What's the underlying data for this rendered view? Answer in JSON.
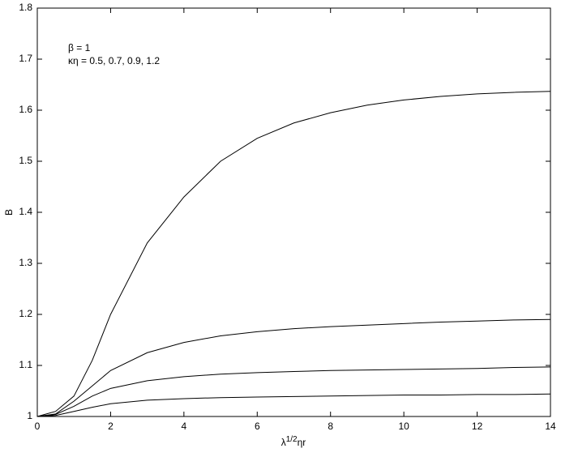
{
  "chart_data": {
    "type": "line",
    "annotations": [
      "β = 1",
      "κη = 0.5, 0.7, 0.9, 1.2"
    ],
    "xlabel": [
      "λ",
      "1/2",
      "ηr"
    ],
    "ylabel": "B",
    "x": [
      0,
      0.5,
      1,
      1.5,
      2,
      3,
      4,
      5,
      6,
      7,
      8,
      9,
      10,
      11,
      12,
      13,
      14
    ],
    "series": [
      {
        "color": "#000000",
        "values": [
          1,
          1.01,
          1.04,
          1.11,
          1.2,
          1.34,
          1.43,
          1.5,
          1.545,
          1.575,
          1.595,
          1.61,
          1.62,
          1.627,
          1.632,
          1.635,
          1.637
        ]
      },
      {
        "color": "#000000",
        "values": [
          1,
          1.005,
          1.03,
          1.06,
          1.09,
          1.125,
          1.145,
          1.158,
          1.166,
          1.172,
          1.176,
          1.179,
          1.182,
          1.185,
          1.187,
          1.189,
          1.19
        ]
      },
      {
        "color": "#000000",
        "values": [
          1,
          1.004,
          1.02,
          1.04,
          1.055,
          1.07,
          1.078,
          1.083,
          1.086,
          1.088,
          1.09,
          1.091,
          1.092,
          1.093,
          1.094,
          1.096,
          1.097
        ]
      },
      {
        "color": "#000000",
        "values": [
          1,
          1.002,
          1.01,
          1.018,
          1.025,
          1.032,
          1.035,
          1.037,
          1.038,
          1.039,
          1.04,
          1.041,
          1.042,
          1.042,
          1.043,
          1.043,
          1.044
        ]
      }
    ],
    "xlim": [
      0,
      14
    ],
    "xticks": [
      0,
      2,
      4,
      6,
      8,
      10,
      12,
      14
    ],
    "ylim": [
      1,
      1.8
    ],
    "yticks": [
      1,
      1.1,
      1.2,
      1.3,
      1.4,
      1.5,
      1.6,
      1.7,
      1.8
    ],
    "grid": false
  }
}
